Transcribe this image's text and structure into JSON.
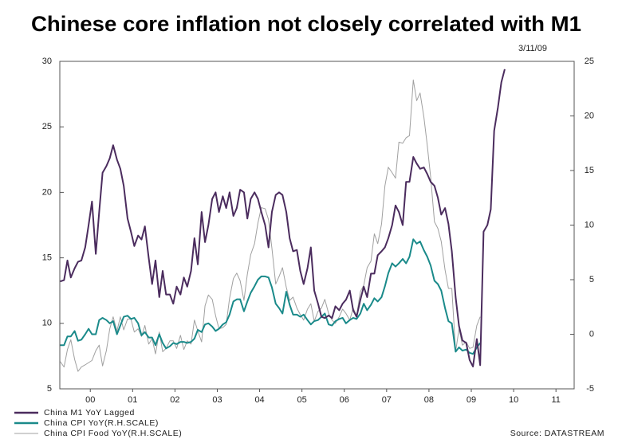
{
  "chart_data": {
    "type": "line",
    "title": "Chinese core inflation not closely correlated with M1",
    "date": "3/11/09",
    "source": "Source: DATASTREAM",
    "x": [
      1999.79,
      1999.88,
      1999.96,
      2000.04,
      2000.13,
      2000.21,
      2000.29,
      2000.38,
      2000.46,
      2000.54,
      2000.63,
      2000.71,
      2000.79,
      2000.88,
      2000.96,
      2001.04,
      2001.13,
      2001.21,
      2001.29,
      2001.38,
      2001.46,
      2001.54,
      2001.63,
      2001.71,
      2001.79,
      2001.88,
      2001.96,
      2002.04,
      2002.13,
      2002.21,
      2002.29,
      2002.38,
      2002.46,
      2002.54,
      2002.63,
      2002.71,
      2002.79,
      2002.88,
      2002.96,
      2003.04,
      2003.13,
      2003.21,
      2003.29,
      2003.38,
      2003.46,
      2003.54,
      2003.63,
      2003.71,
      2003.79,
      2003.88,
      2003.96,
      2004.04,
      2004.13,
      2004.21,
      2004.29,
      2004.38,
      2004.46,
      2004.54,
      2004.63,
      2004.71,
      2004.79,
      2004.88,
      2004.96,
      2005.04,
      2005.13,
      2005.21,
      2005.29,
      2005.38,
      2005.46,
      2005.54,
      2005.63,
      2005.71,
      2005.79,
      2005.88,
      2005.96,
      2006.04,
      2006.13,
      2006.21,
      2006.29,
      2006.38,
      2006.46,
      2006.54,
      2006.63,
      2006.71,
      2006.79,
      2006.88,
      2006.96,
      2007.04,
      2007.13,
      2007.21,
      2007.29,
      2007.38,
      2007.46,
      2007.54,
      2007.63,
      2007.71,
      2007.79,
      2007.88,
      2007.96,
      2008.04,
      2008.13,
      2008.21,
      2008.29,
      2008.38,
      2008.46,
      2008.54,
      2008.63,
      2008.71,
      2008.79,
      2008.88,
      2008.96,
      2009.04,
      2009.13,
      2009.21,
      2009.29,
      2009.38,
      2009.46,
      2009.54,
      2009.63,
      2009.71,
      2009.79,
      2009.88,
      2009.96,
      2010.04,
      2010.13,
      2010.21,
      2010.29
    ],
    "xlim": [
      1999.78,
      2011.93
    ],
    "xticks": [
      {
        "value": 2000.5,
        "label": "00"
      },
      {
        "value": 2001.5,
        "label": "01"
      },
      {
        "value": 2002.5,
        "label": "02"
      },
      {
        "value": 2003.5,
        "label": "03"
      },
      {
        "value": 2004.5,
        "label": "04"
      },
      {
        "value": 2005.5,
        "label": "05"
      },
      {
        "value": 2006.5,
        "label": "06"
      },
      {
        "value": 2007.5,
        "label": "07"
      },
      {
        "value": 2008.5,
        "label": "08"
      },
      {
        "value": 2009.5,
        "label": "09"
      },
      {
        "value": 2010.5,
        "label": "10"
      },
      {
        "value": 2011.5,
        "label": "11"
      }
    ],
    "ylim": [
      5,
      30
    ],
    "yticks": [
      5,
      10,
      15,
      20,
      25,
      30
    ],
    "y2lim": [
      -5,
      25
    ],
    "y2ticks": [
      -5,
      0,
      5,
      10,
      15,
      20,
      25
    ],
    "series": [
      {
        "name": "China M1 YoY Lagged",
        "color": "#4b2c5e",
        "values": [
          13.2,
          13.3,
          14.8,
          13.5,
          14.2,
          14.7,
          14.8,
          15.8,
          17.5,
          19.3,
          15.3,
          18.5,
          21.5,
          22,
          22.6,
          23.6,
          22.5,
          21.8,
          20.5,
          18,
          17,
          15.9,
          16.7,
          16.4,
          17.4,
          15,
          13,
          14.8,
          12,
          14,
          12.2,
          12.2,
          11.5,
          12.8,
          12.2,
          13.5,
          12.8,
          14,
          16.5,
          14.5,
          18.5,
          16.2,
          17.5,
          19.5,
          20,
          18.5,
          19.7,
          18.8,
          20,
          18.2,
          18.8,
          20.2,
          20,
          18,
          19.5,
          20,
          19.5,
          18.5,
          17.5,
          15.8,
          18.5,
          19.8,
          20,
          19.8,
          18.5,
          16.5,
          15.5,
          15.6,
          14,
          13,
          14.2,
          15.8,
          12.5,
          11.5,
          10.5,
          10.4,
          10.6,
          10.4,
          11.3,
          11,
          11.5,
          11.8,
          12.5,
          11,
          10.5,
          11.8,
          12.8,
          12,
          13.8,
          13.8,
          15.2,
          15.5,
          15.8,
          16.5,
          17.5,
          19,
          18.5,
          17.5,
          20.8,
          20.8,
          22.7,
          22.2,
          21.8,
          21.9,
          21.4,
          20.8,
          20.5,
          19.6,
          18.3,
          18.8,
          17.6,
          15.5,
          12,
          9.8,
          8.7,
          8.5,
          7.2,
          6.7,
          8.8,
          6.8,
          17,
          17.5,
          18.7,
          24.7,
          26.5,
          28.4,
          29.4
        ]
      },
      {
        "name": "China CPI YoY(R.H.SCALE)",
        "color": "#1a8a8a",
        "axis": "y2",
        "values": [
          -1,
          -1,
          -0.2,
          -0.2,
          0.3,
          -0.6,
          -0.5,
          0.0,
          0.5,
          0.0,
          0.0,
          1.3,
          1.5,
          1.3,
          1.0,
          1.2,
          0,
          0.8,
          1.6,
          1.7,
          1.4,
          1.5,
          1.0,
          -0.1,
          0.2,
          -0.3,
          -0.3,
          -1,
          0,
          -0.8,
          -1.3,
          -1.1,
          -0.8,
          -0.9,
          -0.7,
          -0.7,
          -0.8,
          -0.7,
          -0.4,
          0.4,
          0.2,
          0.9,
          1.0,
          0.7,
          0.3,
          0.5,
          0.9,
          1.1,
          1.8,
          3.0,
          3.2,
          3.2,
          2.1,
          3.0,
          3.8,
          4.4,
          5.0,
          5.3,
          5.3,
          5.2,
          4.3,
          2.8,
          2.4,
          1.9,
          3.9,
          2.7,
          1.8,
          1.8,
          1.6,
          1.8,
          1.3,
          0.9,
          1.2,
          1.3,
          1.6,
          1.9,
          0.9,
          0.8,
          1.2,
          1.4,
          1.5,
          1.0,
          1.3,
          1.5,
          1.4,
          1.9,
          2.8,
          2.2,
          2.7,
          3.3,
          3.0,
          3.4,
          4.4,
          5.6,
          6.5,
          6.2,
          6.5,
          6.9,
          6.5,
          7.1,
          8.7,
          8.3,
          8.5,
          7.7,
          7.1,
          6.3,
          4.9,
          4.6,
          4.0,
          2.4,
          1.2,
          1.0,
          -1.6,
          -1.2,
          -1.5,
          -1.4,
          -1.7,
          -1.8,
          -1.2,
          -0.8,
          null,
          null,
          null,
          null,
          null,
          null,
          null
        ]
      },
      {
        "name": "China CPI Food YoY(R.H.SCALE)",
        "color": "#a0a0a0",
        "axis": "y2",
        "values": [
          -2.5,
          -3,
          -1.4,
          -0.5,
          -2.3,
          -3.4,
          -3,
          -2.8,
          -2.6,
          -2.4,
          -1.5,
          -1,
          -2.9,
          -1.5,
          0.5,
          1.6,
          0.3,
          1.6,
          0.4,
          1.4,
          1.4,
          0.2,
          0.5,
          -0.2,
          0.8,
          -0.9,
          -0.4,
          -1.8,
          0.2,
          -1.6,
          -1.3,
          -0.6,
          -0.6,
          -1.3,
          -0.1,
          -1.4,
          -0.6,
          -0.9,
          1.3,
          0.3,
          -0.7,
          2.6,
          3.6,
          3.2,
          1.7,
          0.5,
          0.6,
          0.9,
          3.3,
          5.1,
          5.6,
          4.9,
          3.1,
          5.5,
          7.3,
          8.3,
          10.2,
          11.6,
          11.5,
          10.5,
          7.9,
          4.6,
          5.3,
          6.1,
          4.3,
          3.1,
          3.4,
          2.4,
          1.8,
          1.3,
          2.3,
          2.8,
          1.2,
          2.1,
          2.4,
          3.2,
          1.9,
          1.3,
          1.0,
          1.6,
          2.3,
          1.9,
          1.3,
          2.4,
          1.7,
          3.9,
          4.5,
          6.1,
          6.7,
          9.2,
          8.3,
          10.1,
          13.6,
          15.3,
          14.8,
          14.3,
          17.6,
          17.5,
          18.0,
          18.2,
          23.3,
          21.4,
          22.1,
          19.9,
          17.3,
          14.4,
          10.3,
          9.7,
          8.5,
          5.9,
          4.2,
          4.2,
          -1.6,
          0.5,
          -1.0,
          -0.7,
          -1.3,
          -1.2,
          0.8,
          1.6,
          null,
          null,
          null,
          null,
          null,
          null,
          null
        ]
      }
    ]
  }
}
